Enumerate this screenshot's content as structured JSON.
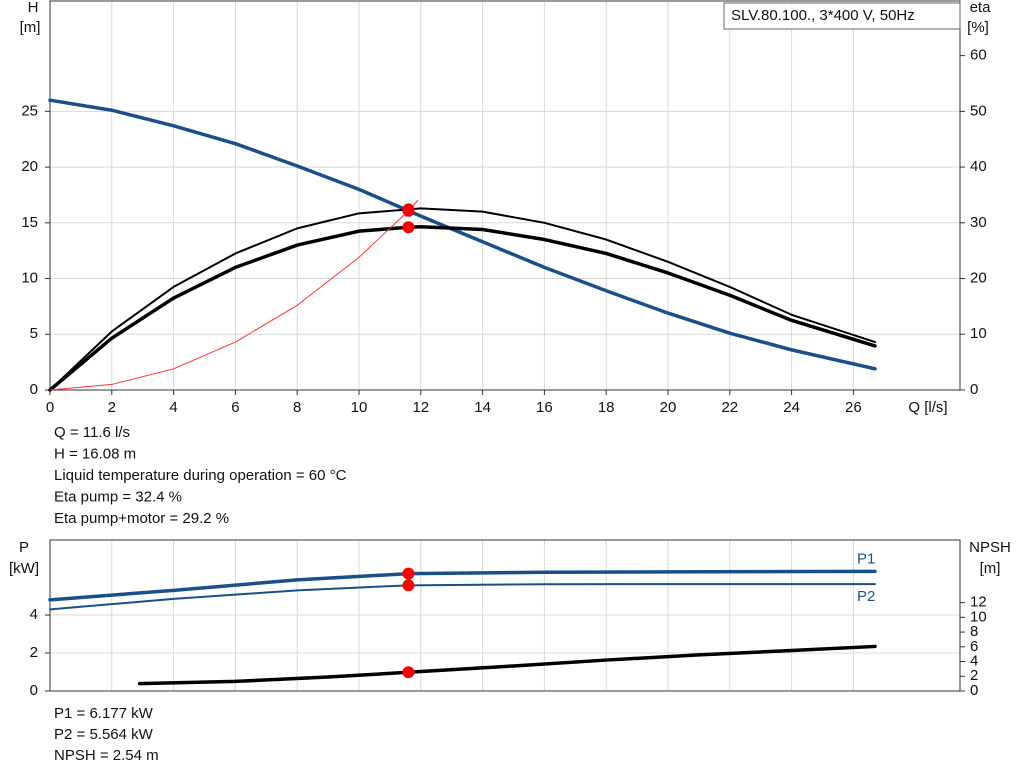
{
  "chart_data": [
    {
      "type": "line",
      "legend_text": "SLV.80.100., 3*400 V, 50Hz",
      "ylabel": "H",
      "yunit": "[m]",
      "y2label": "eta",
      "y2unit": "[%]",
      "xlabel": "Q [l/s]",
      "xlim": [
        0,
        29.45
      ],
      "xticks": [
        0,
        2,
        4,
        6,
        8,
        10,
        12,
        14,
        16,
        18,
        20,
        22,
        24,
        26
      ],
      "ylim": [
        0,
        34.9
      ],
      "yticks": [
        0,
        5,
        10,
        15,
        20,
        25
      ],
      "y2lim": [
        0,
        69.8
      ],
      "y2ticks": [
        0,
        10,
        20,
        30,
        40,
        50,
        60
      ],
      "grid": true,
      "series": [
        {
          "color": "#1a4f8a",
          "width": 3.5,
          "axis": "y",
          "x": [
            0,
            2,
            4,
            6,
            8,
            10,
            11.6,
            12,
            14,
            16,
            18,
            20,
            22,
            24,
            26.7
          ],
          "values": [
            26,
            25.1,
            23.7,
            22.1,
            20.1,
            18,
            16.08,
            15.6,
            13.3,
            11,
            8.9,
            6.9,
            5.1,
            3.6,
            1.9
          ]
        },
        {
          "color": "#000000",
          "width": 2,
          "axis": "y2",
          "x": [
            0,
            2,
            4,
            6,
            8,
            10,
            11.6,
            12,
            14,
            16,
            18,
            20,
            22,
            24,
            26.7
          ],
          "values": [
            0,
            10.5,
            18.5,
            24.5,
            29,
            31.7,
            32.4,
            32.6,
            32,
            30,
            27,
            23,
            18.5,
            13.5,
            8.6
          ]
        },
        {
          "color": "#000000",
          "width": 3.5,
          "axis": "y2",
          "x": [
            0,
            2,
            4,
            6,
            8,
            10,
            11.6,
            12,
            14,
            16,
            18,
            20,
            22,
            24,
            26.7
          ],
          "values": [
            0,
            9.3,
            16.5,
            22,
            26,
            28.5,
            29.2,
            29.3,
            28.8,
            27,
            24.5,
            21,
            17,
            12.5,
            7.9
          ]
        },
        {
          "color": "#ff3333",
          "width": 1,
          "axis": "y",
          "x": [
            0,
            2,
            4,
            6,
            8,
            10,
            11.6,
            11.9
          ],
          "values": [
            0,
            0.5,
            1.9,
            4.3,
            7.6,
            11.9,
            16.08,
            17
          ]
        }
      ],
      "markers": [
        {
          "x": 11.6,
          "y": 16.08,
          "axis": "y",
          "color": "#ff0000"
        },
        {
          "x": 11.6,
          "y": 32.4,
          "axis": "y2",
          "color": "#ff0000"
        },
        {
          "x": 11.6,
          "y": 29.2,
          "axis": "y2",
          "color": "#ff0000"
        }
      ],
      "notes": [
        "Q = 11.6 l/s",
        "H = 16.08 m",
        "Liquid temperature during operation = 60 °C",
        "Eta pump = 32.4 %",
        "Eta pump+motor = 29.2 %"
      ]
    },
    {
      "type": "line",
      "ylabel": "P",
      "yunit": "[kW]",
      "y2label": "NPSH",
      "y2unit": "[m]",
      "xlim": [
        0,
        29.45
      ],
      "ylim": [
        0,
        7.95
      ],
      "yticks": [
        0,
        2,
        4
      ],
      "y2lim": [
        0,
        20.5
      ],
      "y2ticks": [
        0,
        2,
        4,
        6,
        8,
        10,
        12
      ],
      "grid": true,
      "series": [
        {
          "name": "P1",
          "color": "#1a4f8a",
          "width": 3.5,
          "axis": "y",
          "x": [
            0,
            4,
            8,
            11.6,
            16,
            20,
            26.7
          ],
          "values": [
            4.8,
            5.3,
            5.85,
            6.177,
            6.25,
            6.27,
            6.3
          ]
        },
        {
          "name": "P2",
          "color": "#1a4f8a",
          "width": 2,
          "axis": "y",
          "x": [
            0,
            4,
            8,
            11.6,
            16,
            20,
            26.7
          ],
          "values": [
            4.3,
            4.85,
            5.3,
            5.564,
            5.62,
            5.63,
            5.63
          ]
        },
        {
          "color": "#000000",
          "width": 3.5,
          "axis": "y2",
          "x": [
            2.9,
            6,
            9,
            11.6,
            15,
            18,
            21,
            24,
            26.7
          ],
          "values": [
            1.0,
            1.3,
            1.9,
            2.54,
            3.4,
            4.2,
            4.9,
            5.5,
            6.05
          ]
        }
      ],
      "markers": [
        {
          "x": 11.6,
          "y": 6.177,
          "axis": "y",
          "color": "#ff0000"
        },
        {
          "x": 11.6,
          "y": 5.564,
          "axis": "y",
          "color": "#ff0000"
        },
        {
          "x": 11.6,
          "y": 2.54,
          "axis": "y2",
          "color": "#ff0000"
        }
      ],
      "notes": [
        "P1 = 6.177 kW",
        "P2 = 5.564 kW",
        "NPSH = 2.54 m"
      ]
    }
  ]
}
